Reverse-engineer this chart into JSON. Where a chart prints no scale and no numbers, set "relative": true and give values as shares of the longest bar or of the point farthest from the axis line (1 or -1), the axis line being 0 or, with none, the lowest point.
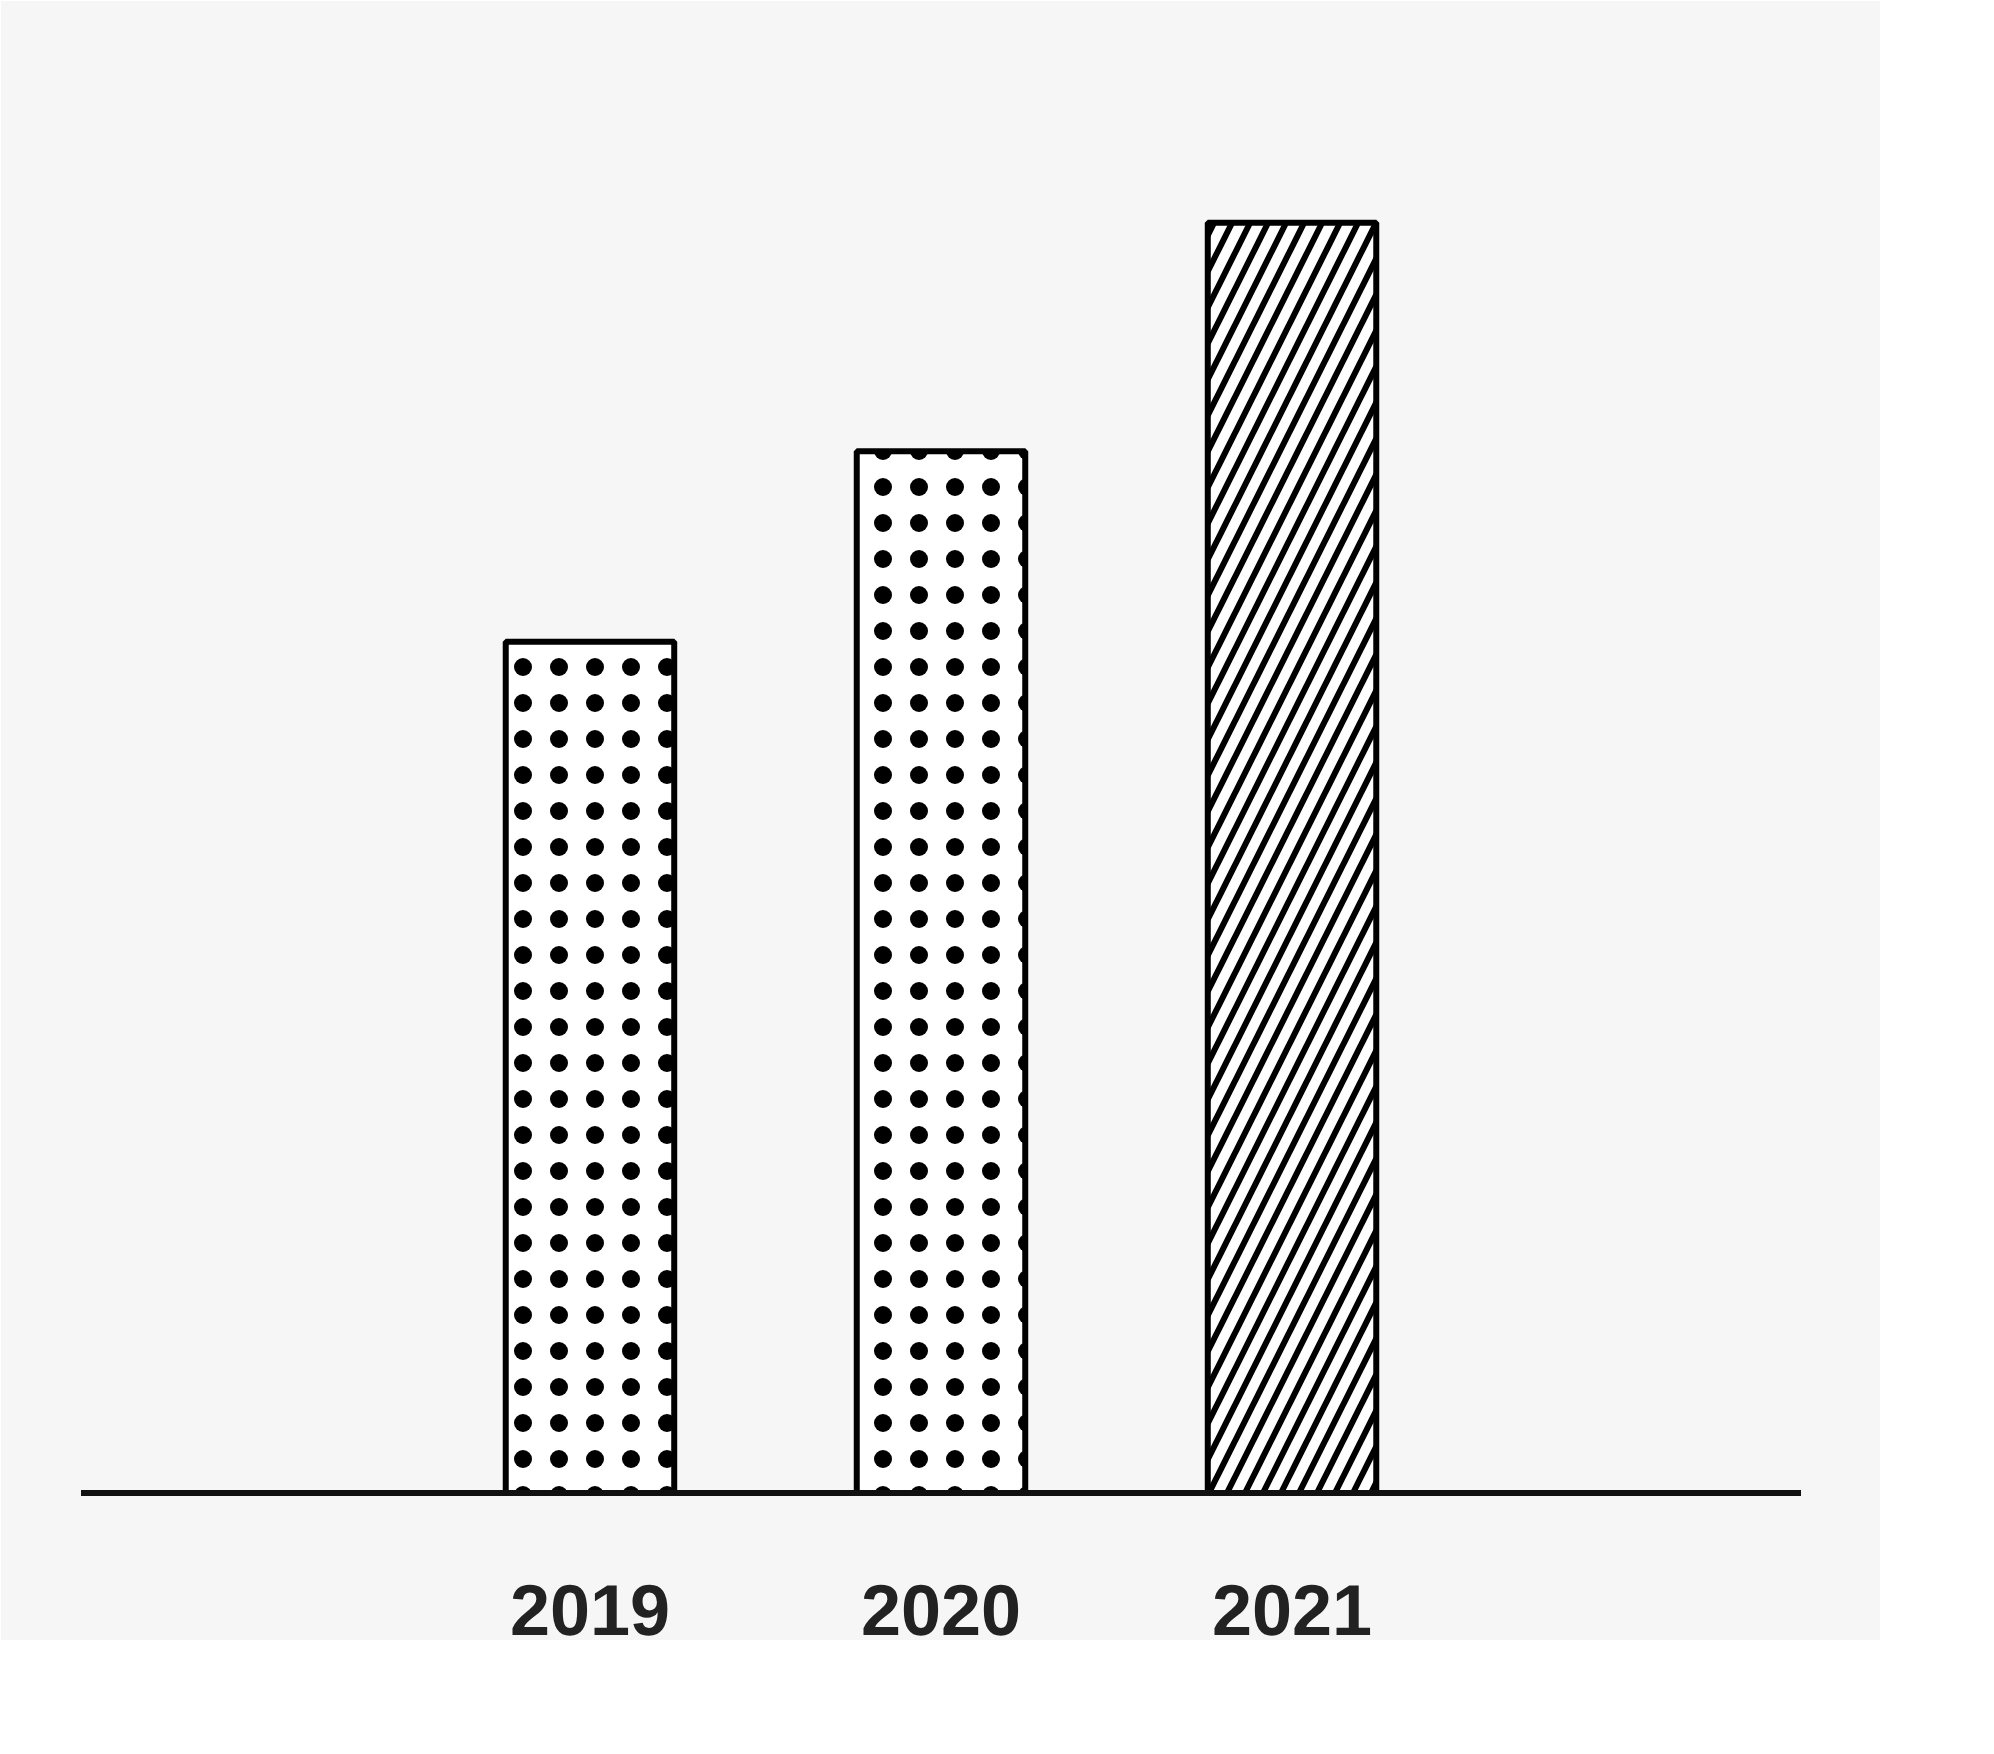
{
  "chart_data": {
    "type": "bar",
    "relative": true,
    "categories": [
      "2019",
      "2020",
      "2021"
    ],
    "values": [
      0.67,
      0.82,
      1
    ],
    "color": "#000000"
  }
}
